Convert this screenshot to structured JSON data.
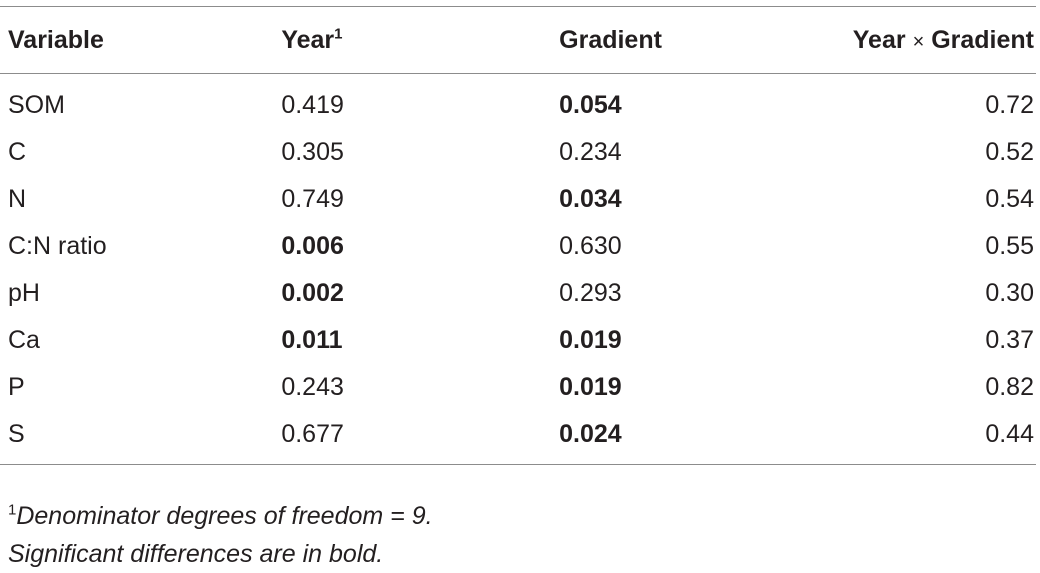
{
  "table": {
    "headers": {
      "variable": "Variable",
      "year": "Year",
      "year_sup": "1",
      "gradient": "Gradient",
      "interaction_year": "Year",
      "interaction_times": "×",
      "interaction_gradient": "Gradient"
    },
    "rows": [
      {
        "variable": "SOM",
        "year": "0.419",
        "gradient": "0.054",
        "interaction": "0.72",
        "year_bold": false,
        "gradient_bold": true
      },
      {
        "variable": "C",
        "year": "0.305",
        "gradient": "0.234",
        "interaction": "0.52",
        "year_bold": false,
        "gradient_bold": false
      },
      {
        "variable": "N",
        "year": "0.749",
        "gradient": "0.034",
        "interaction": "0.54",
        "year_bold": false,
        "gradient_bold": true
      },
      {
        "variable": "C:N ratio",
        "year": "0.006",
        "gradient": "0.630",
        "interaction": "0.55",
        "year_bold": true,
        "gradient_bold": false
      },
      {
        "variable": "pH",
        "year": "0.002",
        "gradient": "0.293",
        "interaction": "0.30",
        "year_bold": true,
        "gradient_bold": false
      },
      {
        "variable": "Ca",
        "year": "0.011",
        "gradient": "0.019",
        "interaction": "0.37",
        "year_bold": true,
        "gradient_bold": true
      },
      {
        "variable": "P",
        "year": "0.243",
        "gradient": "0.019",
        "interaction": "0.82",
        "year_bold": false,
        "gradient_bold": true
      },
      {
        "variable": "S",
        "year": "0.677",
        "gradient": "0.024",
        "interaction": "0.44",
        "year_bold": false,
        "gradient_bold": true
      }
    ]
  },
  "footnotes": {
    "note1_marker": "1",
    "note1_text": "Denominator degrees of freedom = 9.",
    "note2_text": "Significant differences are in bold."
  }
}
